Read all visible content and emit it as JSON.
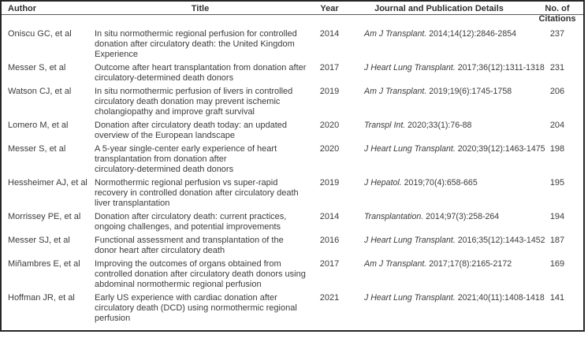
{
  "header": {
    "author": "Author",
    "title": "Title",
    "year": "Year",
    "journal": "Journal and Publication Details",
    "citations": "No. of\nCitations"
  },
  "rows": [
    {
      "author": "Oniscu GC, et al",
      "title": "In situ normothermic regional perfusion for controlled\ndonation after circulatory death: the United Kingdom\nExperience",
      "year": "2014",
      "journal": "Am J Transplant.",
      "details": "2014;14(12):2846-2854",
      "citations": "237"
    },
    {
      "author": "Messer S, et al",
      "title": "Outcome after heart transplantation from donation after\ncirculatory-determined death donors",
      "year": "2017",
      "journal": "J Heart Lung Transplant.",
      "details": "2017;36(12):1311-1318",
      "citations": "231"
    },
    {
      "author": "Watson CJ, et al",
      "title": "In situ normothermic perfusion of livers in controlled\ncirculatory death donation may prevent ischemic\ncholangiopathy and improve graft survival",
      "year": "2019",
      "journal": "Am J Transplant.",
      "details": "2019;19(6):1745-1758",
      "citations": "206"
    },
    {
      "author": "Lomero M, et al",
      "title": "Donation after circulatory death today: an updated\noverview of the European landscape",
      "year": "2020",
      "journal": "Transpl Int.",
      "details": "2020;33(1):76-88",
      "citations": "204"
    },
    {
      "author": "Messer S, et al",
      "title": "A 5-year single-center early experience of heart\ntransplantation from donation after\ncirculatory-determined death donors",
      "year": "2020",
      "journal": "J Heart Lung Transplant.",
      "details": "2020;39(12):1463-1475",
      "citations": "198"
    },
    {
      "author": "Hessheimer AJ, et al",
      "title": "Normothermic regional perfusion vs super-rapid\nrecovery in controlled donation after circulatory death\nliver transplantation",
      "year": "2019",
      "journal": "J Hepatol.",
      "details": "2019;70(4):658-665",
      "citations": "195"
    },
    {
      "author": "Morrissey PE, et al",
      "title": "Donation after circulatory death: current practices,\nongoing challenges, and potential improvements",
      "year": "2014",
      "journal": "Transplantation.",
      "details": "2014;97(3):258-264",
      "citations": "194"
    },
    {
      "author": "Messer SJ, et al",
      "title": "Functional assessment and transplantation of the\ndonor heart after circulatory death",
      "year": "2016",
      "journal": "J Heart Lung Transplant.",
      "details": "2016;35(12):1443-1452",
      "citations": "187"
    },
    {
      "author": "Miñambres E, et al",
      "title": "Improving the outcomes of organs obtained from\ncontrolled donation after circulatory death donors using\nabdominal normothermic regional perfusion",
      "year": "2017",
      "journal": "Am J Transplant.",
      "details": "2017;17(8):2165-2172",
      "citations": "169"
    },
    {
      "author": "Hoffman JR, et al",
      "title": "Early US experience with cardiac donation after\ncirculatory death (DCD) using normothermic regional\nperfusion",
      "year": "2021",
      "journal": "J Heart Lung Transplant.",
      "details": "2021;40(11):1408-1418",
      "citations": "141"
    }
  ]
}
